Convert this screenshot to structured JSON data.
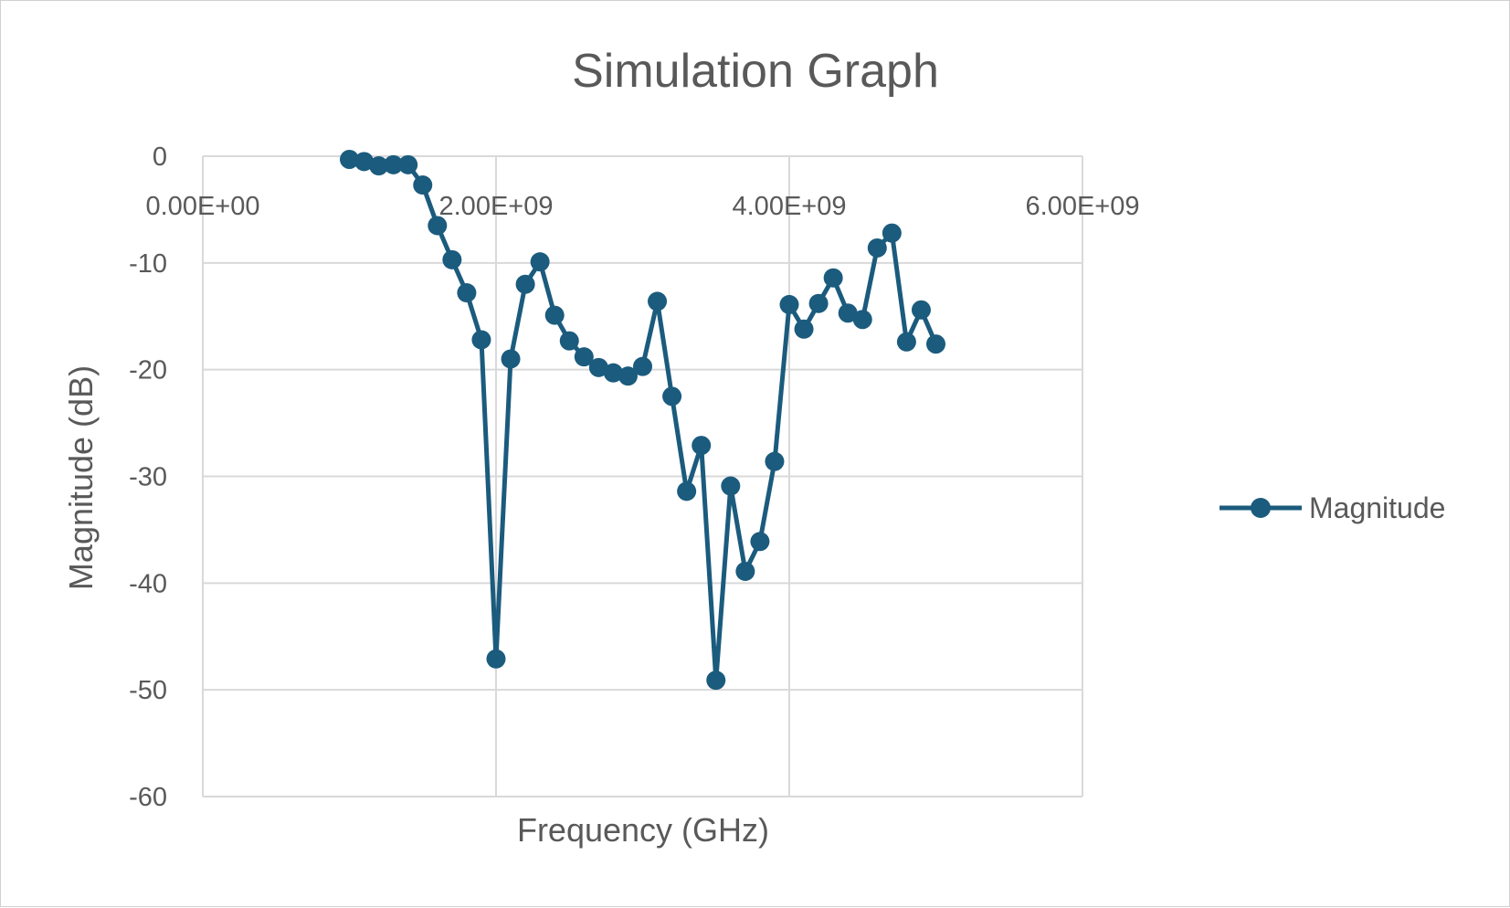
{
  "chart_data": {
    "type": "line",
    "title": "Simulation Graph",
    "xlabel": "Frequency (GHz)",
    "ylabel": "Magnitude (dB)",
    "xlim": [
      0,
      6000000000
    ],
    "ylim": [
      -60,
      0
    ],
    "x_ticks": [
      0,
      2000000000,
      4000000000,
      6000000000
    ],
    "x_tick_labels": [
      "0.00E+00",
      "2.00E+09",
      "4.00E+09",
      "6.00E+09"
    ],
    "y_ticks": [
      0,
      -10,
      -20,
      -30,
      -40,
      -50,
      -60
    ],
    "y_tick_labels": [
      "0",
      "-10",
      "-20",
      "-30",
      "-40",
      "-50",
      "-60"
    ],
    "x_axis_position": "top",
    "grid": true,
    "legend_position": "right",
    "color": "#1b5b7d",
    "series": [
      {
        "name": "Magnitude",
        "x": [
          1000000000,
          1100000000,
          1200000000,
          1300000000,
          1400000000,
          1500000000,
          1600000000,
          1700000000,
          1800000000,
          1900000000,
          2000000000,
          2100000000,
          2200000000,
          2300000000,
          2400000000,
          2500000000,
          2600000000,
          2700000000,
          2800000000,
          2900000000,
          3000000000,
          3100000000,
          3200000000,
          3300000000,
          3400000000,
          3500000000,
          3600000000,
          3700000000,
          3800000000,
          3900000000,
          4000000000,
          4100000000,
          4200000000,
          4300000000,
          4400000000,
          4500000000,
          4600000000,
          4700000000,
          4800000000,
          4900000000,
          5000000000
        ],
        "values": [
          -0.3,
          -0.5,
          -0.9,
          -0.8,
          -0.8,
          -2.7,
          -6.5,
          -9.7,
          -12.8,
          -17.2,
          -47.1,
          -19.0,
          -12.0,
          -9.9,
          -14.9,
          -17.3,
          -18.8,
          -19.8,
          -20.3,
          -20.6,
          -19.7,
          -13.6,
          -22.5,
          -31.4,
          -27.1,
          -49.1,
          -30.9,
          -38.9,
          -36.1,
          -28.6,
          -13.9,
          -16.2,
          -13.8,
          -11.4,
          -14.7,
          -15.3,
          -8.6,
          -7.2,
          -17.4,
          -14.4,
          -17.6
        ]
      }
    ]
  }
}
